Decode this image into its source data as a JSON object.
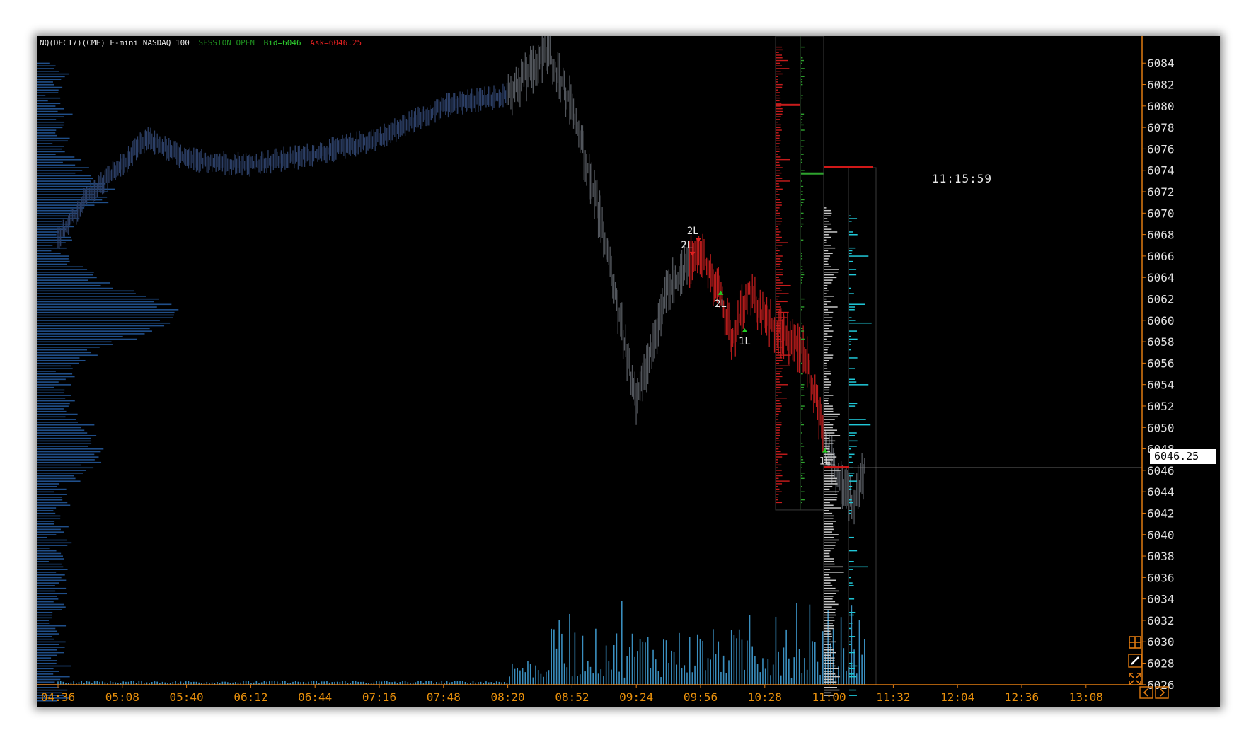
{
  "header": {
    "symbol": "NQ(DEC17)(CME) E-mini NASDAQ 100",
    "status": "SESSION OPEN",
    "bid": "Bid=6046",
    "ask": "Ask=6046.25"
  },
  "clock": "11:15:59",
  "last_price": "6046.25",
  "colors": {
    "background": "#000000",
    "axis": "#e07a10",
    "axis_text": "#e8900c",
    "price_axis_text": "#e0e0e0",
    "history_bars": "#2c3f66",
    "pre_bars": "#52565c",
    "session_bars": "#b81c1c",
    "volume": "#3a8fc0",
    "volume_profile": "#204f8a",
    "ask_profile": "#c81c1c",
    "bid_profile": "#2ea32e",
    "dom_bid": "#c8c8c8",
    "dom_ask": "#20c8d8",
    "buy_marker": "#22cc22",
    "sell_marker": "#e02020"
  },
  "toolbar": {
    "icons": [
      "grid-icon",
      "pencil-icon",
      "expand-icon",
      "scroll-left-icon",
      "scroll-right-icon"
    ]
  },
  "chart_data": {
    "type": "bar",
    "title": "",
    "x_ticks": [
      "04:36",
      "05:08",
      "05:40",
      "06:12",
      "06:44",
      "07:16",
      "07:48",
      "08:20",
      "08:52",
      "09:24",
      "09:56",
      "10:28",
      "11:00",
      "11:32",
      "12:04",
      "12:36",
      "13:08"
    ],
    "y_ticks": [
      6084,
      6082,
      6080,
      6078,
      6076,
      6074,
      6072,
      6070,
      6068,
      6066,
      6064,
      6062,
      6060,
      6058,
      6056,
      6054,
      6052,
      6050,
      6048,
      6046,
      6044,
      6042,
      6040,
      6038,
      6036,
      6034,
      6032,
      6030,
      6028,
      6026
    ],
    "ylim": [
      6024.8,
      6085.6
    ],
    "last_price": 6046.25,
    "price_path": [
      [
        "04:36",
        6067.5
      ],
      [
        "04:50",
        6071.5
      ],
      [
        "05:08",
        6074.5
      ],
      [
        "05:20",
        6077.0
      ],
      [
        "05:40",
        6075.0
      ],
      [
        "06:12",
        6074.5
      ],
      [
        "06:44",
        6075.5
      ],
      [
        "07:16",
        6077.0
      ],
      [
        "07:48",
        6080.0
      ],
      [
        "08:20",
        6081.0
      ],
      [
        "08:40",
        6085.0
      ],
      [
        "08:52",
        6080.0
      ],
      [
        "09:08",
        6068.0
      ],
      [
        "09:24",
        6052.0
      ],
      [
        "09:40",
        6063.0
      ],
      [
        "09:56",
        6066.5
      ],
      [
        "10:06",
        6062.0
      ],
      [
        "10:12",
        6058.0
      ],
      [
        "10:20",
        6063.0
      ],
      [
        "10:28",
        6060.0
      ],
      [
        "10:36",
        6059.0
      ],
      [
        "10:48",
        6057.0
      ],
      [
        "10:54",
        6052.0
      ],
      [
        "11:00",
        6047.5
      ],
      [
        "11:12",
        6042.5
      ],
      [
        "11:18",
        6046.25
      ]
    ],
    "trade_markers": [
      {
        "label": "2L",
        "time": "09:55",
        "price": 6067.5,
        "side": "sell"
      },
      {
        "label": "2L",
        "time": "09:52",
        "price": 6066.2,
        "side": "sell"
      },
      {
        "label": "2L",
        "time": "10:06",
        "price": 6062.5,
        "side": "buy"
      },
      {
        "label": "1L",
        "time": "10:18",
        "price": 6059.0,
        "side": "buy"
      },
      {
        "label": "1L",
        "time": "10:58",
        "price": 6047.8,
        "side": "buy"
      }
    ]
  }
}
